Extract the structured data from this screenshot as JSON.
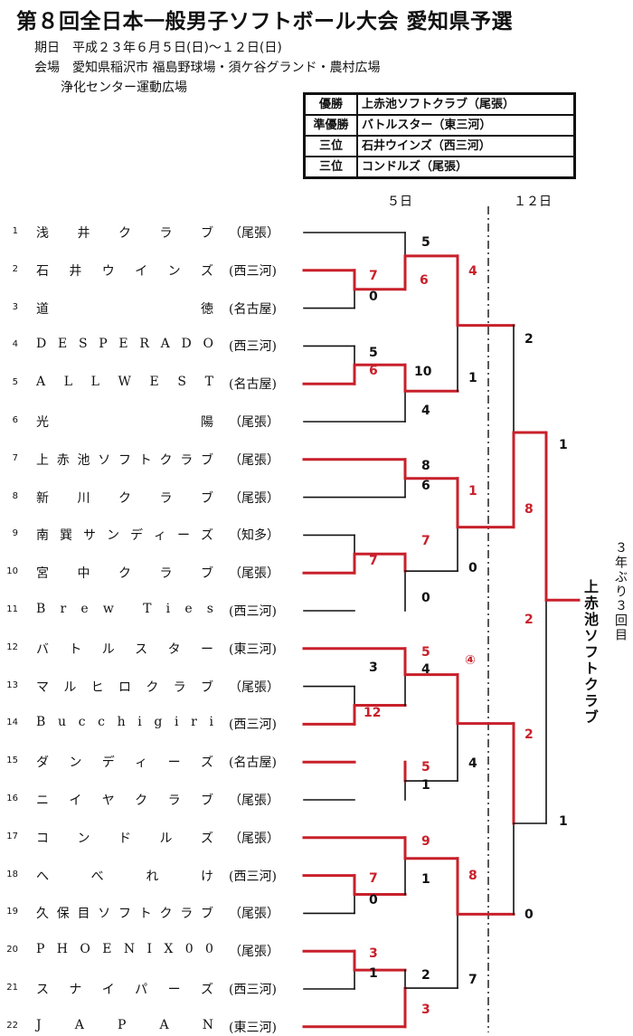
{
  "title": "第８回全日本一般男子ソフトボール大会 愛知県予選",
  "date_line": "期日　平成２３年６月５日(日)～１２日(日)",
  "venue_line1": "会場　愛知県稲沢市 福島野球場・須ケ谷グランド・農村広場",
  "venue_line2": "浄化センター運動広場",
  "results": [
    {
      "rank": "優勝",
      "team": "上赤池ソフトクラブ（尾張）"
    },
    {
      "rank": "準優勝",
      "team": "バトルスター（東三河）"
    },
    {
      "rank": "三位",
      "team": "石井ウインズ（西三河）"
    },
    {
      "rank": "三位",
      "team": "コンドルズ（尾張）"
    }
  ],
  "days": {
    "day1": "５日",
    "day2": "１２日"
  },
  "teams": [
    {
      "no": "1",
      "name": "浅井クラブ",
      "region": "（尾張）"
    },
    {
      "no": "2",
      "name": "石井ウインズ",
      "region": "(西三河)"
    },
    {
      "no": "3",
      "name": "道徳",
      "region": "(名古屋)"
    },
    {
      "no": "4",
      "name": "DESPERADO",
      "region": "(西三河)"
    },
    {
      "no": "5",
      "name": "ALLWEST",
      "region": "(名古屋)"
    },
    {
      "no": "6",
      "name": "光陽",
      "region": "（尾張）"
    },
    {
      "no": "7",
      "name": "上赤池ソフトクラブ",
      "region": "（尾張）"
    },
    {
      "no": "8",
      "name": "新川クラブ",
      "region": "（尾張）"
    },
    {
      "no": "9",
      "name": "南巽サンディーズ",
      "region": "（知多）"
    },
    {
      "no": "10",
      "name": "宮中クラブ",
      "region": "（尾張）"
    },
    {
      "no": "11",
      "name": "Brew Ties",
      "region": "(西三河)"
    },
    {
      "no": "12",
      "name": "バトルスター",
      "region": "(東三河)"
    },
    {
      "no": "13",
      "name": "マルヒロクラブ",
      "region": "（尾張）"
    },
    {
      "no": "14",
      "name": "Bucchigiri",
      "region": "(西三河)"
    },
    {
      "no": "15",
      "name": "ダンディーズ",
      "region": "(名古屋)"
    },
    {
      "no": "16",
      "name": "ニイヤクラブ",
      "region": "（尾張）"
    },
    {
      "no": "17",
      "name": "コンドルズ",
      "region": "（尾張）"
    },
    {
      "no": "18",
      "name": "へべれけ",
      "region": "(西三河)"
    },
    {
      "no": "19",
      "name": "久保目ソフトクラブ",
      "region": "（尾張）"
    },
    {
      "no": "20",
      "name": "PHOENIX00",
      "region": "（尾張）"
    },
    {
      "no": "21",
      "name": "スナイパーズ",
      "region": "(西三河)"
    },
    {
      "no": "22",
      "name": "JAPAN",
      "region": "(東三河)"
    }
  ],
  "scores": [
    {
      "v": "5",
      "win": false
    },
    {
      "v": "7",
      "win": true
    },
    {
      "v": "0",
      "win": false
    },
    {
      "v": "6",
      "win": true
    },
    {
      "v": "4",
      "win": true
    },
    {
      "v": "5",
      "win": false
    },
    {
      "v": "6",
      "win": true
    },
    {
      "v": "10",
      "win": false
    },
    {
      "v": "1",
      "win": false
    },
    {
      "v": "4",
      "win": false
    },
    {
      "v": "2",
      "win": false
    },
    {
      "v": "8",
      "win": false
    },
    {
      "v": "6",
      "win": false
    },
    {
      "v": "1",
      "win": true
    },
    {
      "v": "2",
      "win": true
    },
    {
      "v": "1",
      "win": false
    },
    {
      "v": "8",
      "win": true
    },
    {
      "v": "7",
      "win": true
    },
    {
      "v": "7",
      "win": true
    },
    {
      "v": "0",
      "win": false
    },
    {
      "v": "0",
      "win": false
    },
    {
      "v": "5",
      "win": true
    },
    {
      "v": "3",
      "win": false
    },
    {
      "v": "4",
      "win": false
    },
    {
      "v": "12",
      "win": true
    },
    {
      "v": "④",
      "win": true
    },
    {
      "v": "5",
      "win": true
    },
    {
      "v": "4",
      "win": false
    },
    {
      "v": "1",
      "win": false
    },
    {
      "v": "2",
      "win": true
    },
    {
      "v": "9",
      "win": true
    },
    {
      "v": "7",
      "win": true
    },
    {
      "v": "1",
      "win": false
    },
    {
      "v": "8",
      "win": true
    },
    {
      "v": "0",
      "win": false
    },
    {
      "v": "1",
      "win": false
    },
    {
      "v": "0",
      "win": false
    },
    {
      "v": "3",
      "win": true
    },
    {
      "v": "1",
      "win": false
    },
    {
      "v": "2",
      "win": false
    },
    {
      "v": "7",
      "win": false
    },
    {
      "v": "3",
      "win": true
    }
  ],
  "champion": "上赤池ソフトクラブ",
  "streak_note": "３年ぶり３回目",
  "colors": {
    "winner": "#c8202b",
    "loser": "#111111"
  }
}
